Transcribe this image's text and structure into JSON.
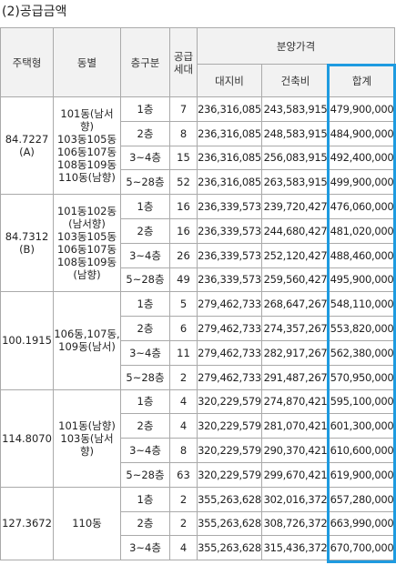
{
  "title": "(2)공급금액",
  "header": {
    "type": "주택형",
    "building": "동별",
    "floor": "층구분",
    "units": [
      "공급",
      "세대"
    ],
    "price": "분양가격",
    "land": "대지비",
    "construction": "건축비",
    "total": "합계"
  },
  "groups": [
    {
      "type": [
        "84.7227",
        "(A)"
      ],
      "building": [
        "101동(남서향)",
        "103동105동",
        "106동107동",
        "108동109동",
        "110동(남향)"
      ],
      "rows": [
        [
          "1층",
          7,
          "236,316,085",
          "243,583,915",
          "479,900,000"
        ],
        [
          "2층",
          8,
          "236,316,085",
          "248,583,915",
          "484,900,000"
        ],
        [
          "3~4층",
          15,
          "236,316,085",
          "256,083,915",
          "492,400,000"
        ],
        [
          "5~28층",
          52,
          "236,316,085",
          "263,583,915",
          "499,900,000"
        ]
      ]
    },
    {
      "type": [
        "84.7312",
        "(B)"
      ],
      "building": [
        "101동102동",
        "(남서향)",
        "103동105동",
        "106동107동",
        "108동109동",
        "(남향)"
      ],
      "rows": [
        [
          "1층",
          16,
          "236,339,573",
          "239,720,427",
          "476,060,000"
        ],
        [
          "2층",
          16,
          "236,339,573",
          "244,680,427",
          "481,020,000"
        ],
        [
          "3~4층",
          26,
          "236,339,573",
          "252,120,427",
          "488,460,000"
        ],
        [
          "5~28층",
          49,
          "236,339,573",
          "259,560,427",
          "495,900,000"
        ]
      ]
    },
    {
      "type": [
        "100.1915"
      ],
      "building": [
        "106동,107동,",
        "109동(남서)"
      ],
      "rows": [
        [
          "1층",
          5,
          "279,462,733",
          "268,647,267",
          "548,110,000"
        ],
        [
          "2층",
          6,
          "279,462,733",
          "274,357,267",
          "553,820,000"
        ],
        [
          "3~4층",
          11,
          "279,462,733",
          "282,917,267",
          "562,380,000"
        ],
        [
          "5~28층",
          2,
          "279,462,733",
          "291,487,267",
          "570,950,000"
        ]
      ]
    },
    {
      "type": [
        "114.8070"
      ],
      "building": [
        "101동(남향)",
        "103동(남서향)"
      ],
      "rows": [
        [
          "1층",
          4,
          "320,229,579",
          "274,870,421",
          "595,100,000"
        ],
        [
          "2층",
          4,
          "320,229,579",
          "281,070,421",
          "601,300,000"
        ],
        [
          "3~4층",
          8,
          "320,229,579",
          "290,370,421",
          "610,600,000"
        ],
        [
          "5~28층",
          63,
          "320,229,579",
          "299,670,421",
          "619,900,000"
        ]
      ]
    },
    {
      "type": [
        "127.3672"
      ],
      "building": [
        "110동"
      ],
      "rows": [
        [
          "1층",
          2,
          "355,263,628",
          "302,016,372",
          "657,280,000"
        ],
        [
          "2층",
          2,
          "355,263,628",
          "308,726,372",
          "663,990,000"
        ],
        [
          "3~4층",
          4,
          "355,263,628",
          "315,436,372",
          "670,700,000"
        ]
      ]
    }
  ]
}
